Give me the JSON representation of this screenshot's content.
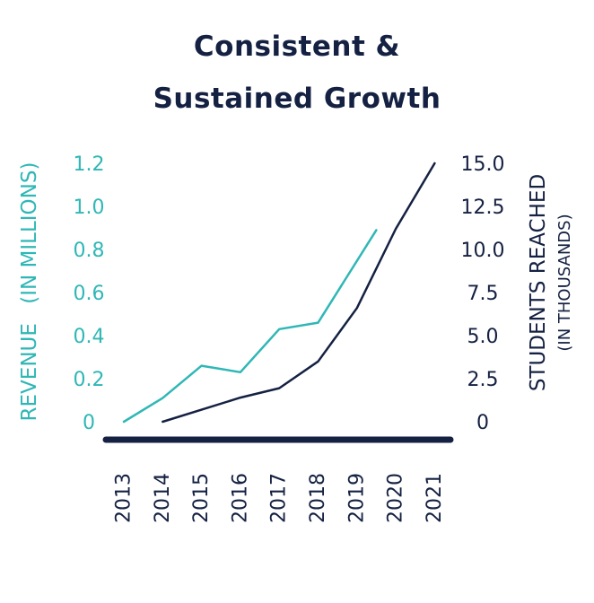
{
  "title": {
    "line1": "Consistent &",
    "line2": "Sustained Growth"
  },
  "colors": {
    "revenue": "#2fb7b6",
    "students": "#152142",
    "baseline": "#152142"
  },
  "chart_data": {
    "type": "line",
    "title": "Consistent & Sustained Growth",
    "x": [
      "2013",
      "2014",
      "2015",
      "2016",
      "2017",
      "2018",
      "2019",
      "2020",
      "2021"
    ],
    "y_left": {
      "label_main": "REVENUE",
      "label_sub": "(IN MILLIONS)",
      "ticks": [
        "0",
        "0.2",
        "0.4",
        "0.6",
        "0.8",
        "1.0",
        "1.2"
      ],
      "range": [
        0,
        1.2
      ]
    },
    "y_right": {
      "label_main": "STUDENTS REACHED",
      "label_sub": "(IN THOUSANDS)",
      "ticks": [
        "0",
        "2.5",
        "5.0",
        "7.5",
        "10.0",
        "12.5",
        "15.0"
      ],
      "range": [
        0,
        15
      ]
    },
    "series": [
      {
        "axis": "left",
        "x": [
          2013,
          2014,
          2015,
          2016,
          2017,
          2018,
          2019.5
        ],
        "values": [
          0,
          0.11,
          0.26,
          0.23,
          0.43,
          0.46,
          0.89
        ]
      },
      {
        "axis": "right",
        "x": [
          2014,
          2015,
          2016,
          2017,
          2018,
          2019,
          2020,
          2021
        ],
        "values": [
          0,
          0.7,
          1.4,
          1.95,
          3.5,
          6.6,
          11.2,
          15.0
        ]
      }
    ]
  }
}
